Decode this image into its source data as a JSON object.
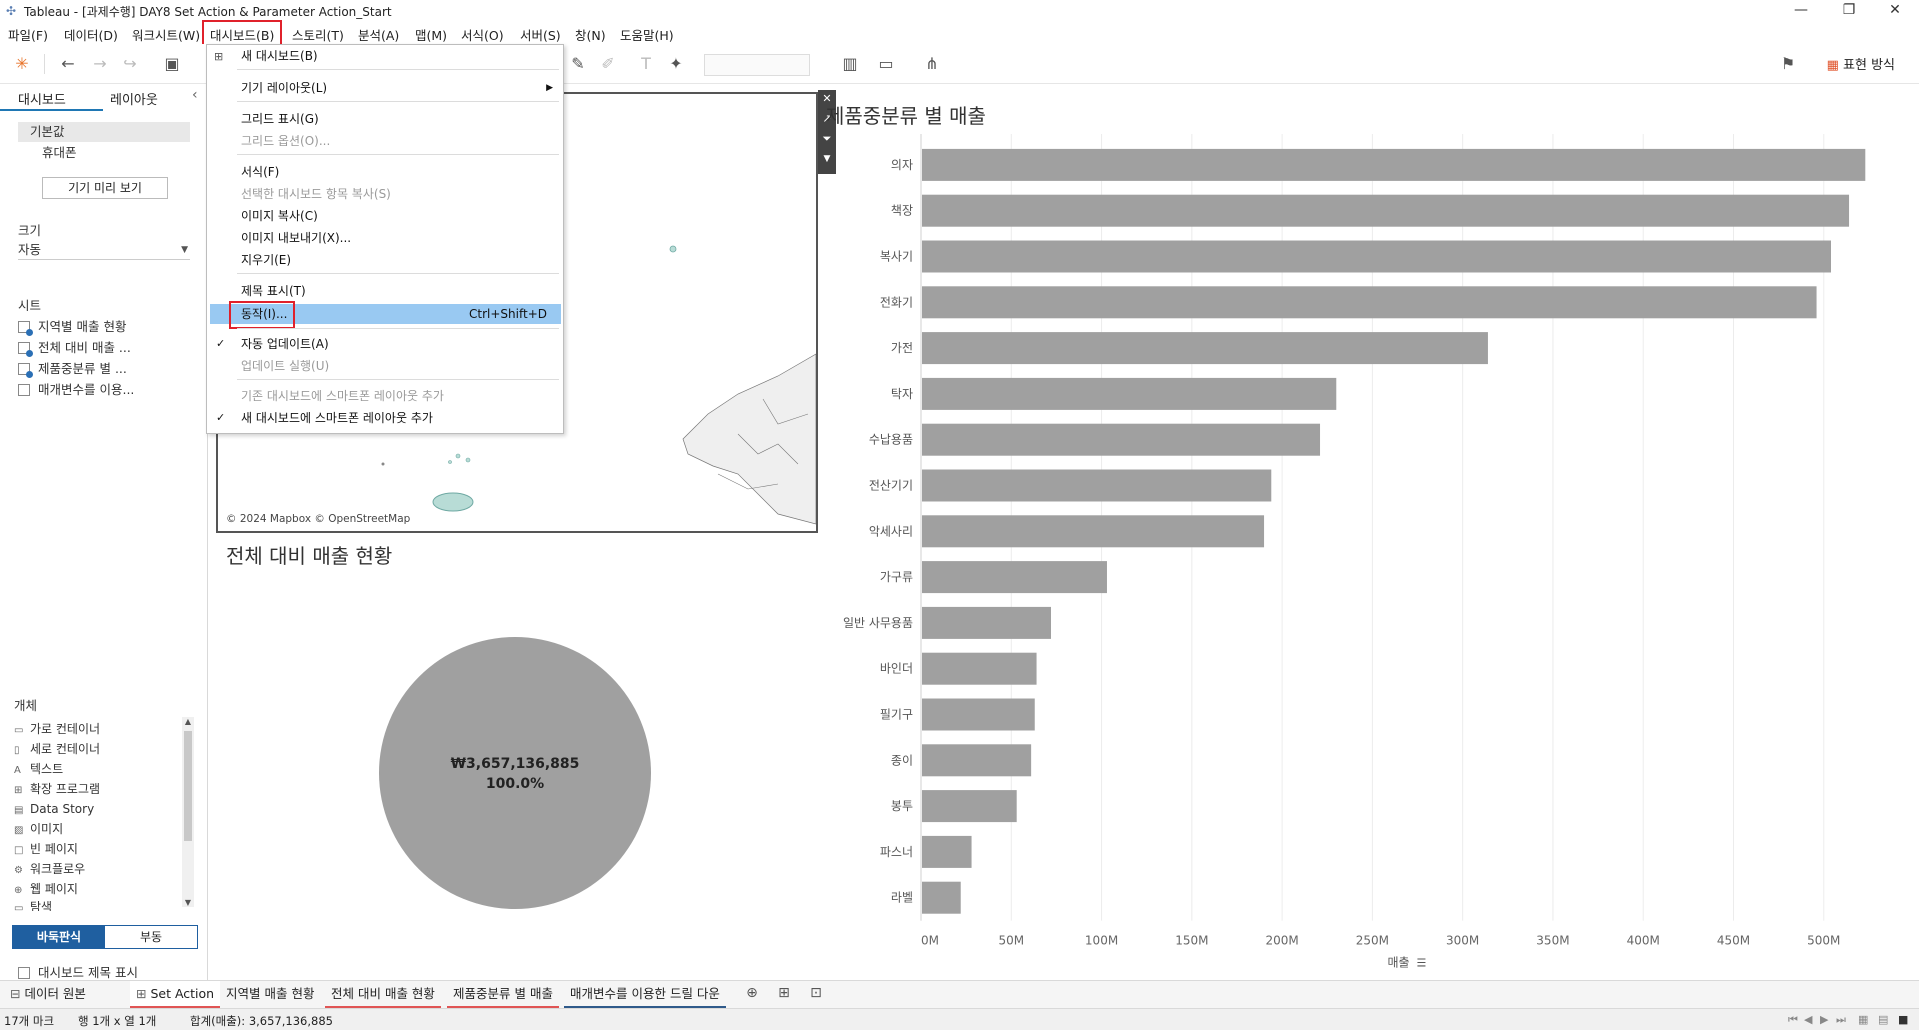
{
  "window": {
    "title": "Tableau - [과제수행] DAY8 Set Action & Parameter Action_Start",
    "controls": [
      "minimize-icon",
      "restore-icon",
      "close-icon"
    ]
  },
  "menubar": {
    "items": [
      "파일(F)",
      "데이터(D)",
      "워크시트(W)",
      "대시보드(B)",
      "스토리(T)",
      "분석(A)",
      "맵(M)",
      "서식(O)",
      "서버(S)",
      "창(N)",
      "도움말(H)"
    ],
    "active": "대시보드(B)"
  },
  "toolbar": {
    "present_label": "표현 방식"
  },
  "left_panel": {
    "tab_dashboard": "대시보드",
    "tab_layout": "레이아웃",
    "devices": [
      "기본값",
      "휴대폰"
    ],
    "preview_button": "기기 미리 보기",
    "size_title": "크기",
    "size_value": "자동",
    "sheets_title": "시트",
    "sheets": [
      "지역별 매출 현황",
      "전체 대비 매출 ...",
      "제품중분류 별 ...",
      "매개변수를 이용..."
    ],
    "objects_title": "개체",
    "objects": [
      {
        "icon": "horizontal-container-icon",
        "label": "가로 컨테이너"
      },
      {
        "icon": "vertical-container-icon",
        "label": "세로 컨테이너"
      },
      {
        "icon": "text-icon",
        "label": "텍스트"
      },
      {
        "icon": "extension-icon",
        "label": "확장 프로그램"
      },
      {
        "icon": "data-story-icon",
        "label": "Data Story"
      },
      {
        "icon": "image-icon",
        "label": "이미지"
      },
      {
        "icon": "blank-icon",
        "label": "빈 페이지"
      },
      {
        "icon": "workflow-icon",
        "label": "워크플로우"
      },
      {
        "icon": "web-page-icon",
        "label": "웹 페이지"
      },
      {
        "icon": "navigation-icon",
        "label": "탐색"
      }
    ],
    "tiled_label": "바둑판식",
    "floating_label": "부동",
    "show_title_label": "대시보드 제목 표시"
  },
  "dropdown": {
    "items": [
      {
        "label": "새 대시보드(B)",
        "disabled": false
      },
      {
        "label": "기기 레이아웃(L)",
        "disabled": false,
        "submenu": true
      },
      {
        "label": "그리드 표시(G)",
        "disabled": false
      },
      {
        "label": "그리드 옵션(O)...",
        "disabled": true
      },
      {
        "label": "서식(F)",
        "disabled": false
      },
      {
        "label": "선택한 대시보드 항목 복사(S)",
        "disabled": true
      },
      {
        "label": "이미지 복사(C)",
        "disabled": false
      },
      {
        "label": "이미지 내보내기(X)...",
        "disabled": false
      },
      {
        "label": "지우기(E)",
        "disabled": false
      },
      {
        "label": "제목 표시(T)",
        "disabled": false
      },
      {
        "label": "동작(I)...",
        "disabled": false,
        "shortcut": "Ctrl+Shift+D",
        "highlighted": true
      },
      {
        "label": "자동 업데이트(A)",
        "disabled": false,
        "checked": true
      },
      {
        "label": "업데이트 실행(U)",
        "disabled": true
      },
      {
        "label": "기존 대시보드에 스마트폰 레이아웃 추가",
        "disabled": true
      },
      {
        "label": "새 대시보드에 스마트폰 레이아웃 추가",
        "disabled": false,
        "checked": true
      }
    ]
  },
  "map": {
    "attribution": "© 2024 Mapbox © OpenStreetMap"
  },
  "pie": {
    "title": "전체 대비 매출 현황",
    "value_label": "₩3,657,136,885",
    "percent_label": "100.0%",
    "color": "#a0a0a0"
  },
  "chart_data": {
    "type": "bar",
    "orientation": "horizontal",
    "title": "제품중분류 별 매출",
    "categories": [
      "의자",
      "책장",
      "복사기",
      "전화기",
      "가전",
      "탁자",
      "수납용품",
      "전산기기",
      "악세사리",
      "가구류",
      "일반 사무용품",
      "바인더",
      "필기구",
      "종이",
      "봉투",
      "파스너",
      "라벨"
    ],
    "values": [
      523,
      514,
      504,
      496,
      314,
      230,
      221,
      194,
      190,
      103,
      72,
      64,
      63,
      61,
      53,
      28,
      22
    ],
    "value_unit": "M",
    "xlabel": "매출",
    "xticks": [
      "0M",
      "50M",
      "100M",
      "150M",
      "200M",
      "250M",
      "300M",
      "350M",
      "400M",
      "450M",
      "500M"
    ],
    "xlim": [
      0,
      540
    ],
    "bar_color": "#a0a0a0",
    "grid": true
  },
  "bottom_tabs": {
    "data_source": "데이터 원본",
    "tabs": [
      {
        "label": "Set Action",
        "selected": true,
        "color": "#e05555"
      },
      {
        "label": "지역별 매출 현황",
        "selected": false,
        "color": ""
      },
      {
        "label": "전체 대비 매출 현황",
        "selected": false,
        "color": "#e05555"
      },
      {
        "label": "제품중분류 별 매출",
        "selected": false,
        "color": "#e05555"
      },
      {
        "label": "매개변수를 이용한 드릴 다운",
        "selected": false,
        "color": "#2f5a8a"
      }
    ]
  },
  "status": {
    "marks": "17개 마크",
    "rows_cols": "행 1개 x 열 1개",
    "sum": "합계(매출): 3,657,136,885"
  }
}
